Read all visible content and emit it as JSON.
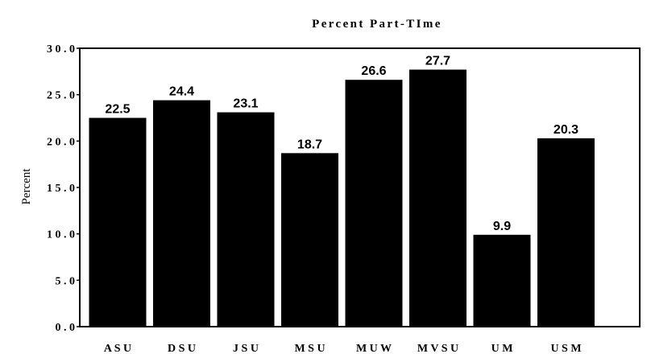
{
  "chart_data": {
    "type": "bar",
    "title": "Percent Part-TIme",
    "xlabel": "",
    "ylabel": "Percent",
    "categories": [
      "ASU",
      "DSU",
      "JSU",
      "MSU",
      "MUW",
      "MVSU",
      "UM",
      "USM"
    ],
    "category_labels": [
      "A S U",
      "D S U",
      "J S U",
      "M S U",
      "M U W",
      "M V S U",
      "U M",
      "U S M"
    ],
    "values": [
      22.5,
      24.4,
      23.1,
      18.7,
      26.6,
      27.7,
      9.9,
      20.3
    ],
    "value_labels": [
      "22.5",
      "24.4",
      "23.1",
      "18.7",
      "26.6",
      "27.7",
      "9.9",
      "20.3"
    ],
    "ylim": [
      0,
      30
    ],
    "yticks": [
      0,
      5,
      10,
      15,
      20,
      25,
      30
    ],
    "ytick_labels": [
      "0 . 0",
      "5 . 0",
      "1 0 . 0",
      "1 5 . 0",
      "2 0 . 0",
      "2 5 . 0",
      "3 0 . 0"
    ],
    "bar_color": "#000000",
    "grid": false,
    "legend": "none"
  }
}
